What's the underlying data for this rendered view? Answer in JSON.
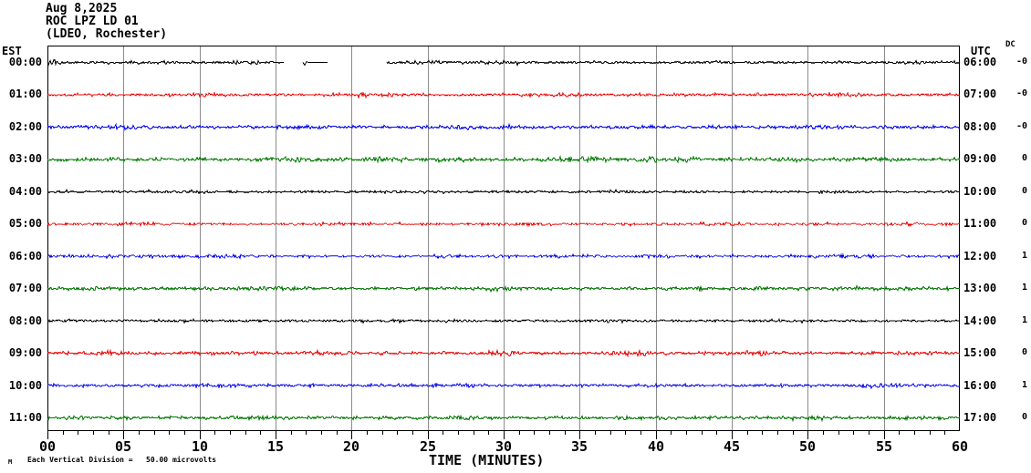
{
  "header": {
    "date": "Aug 8,2025",
    "station": "ROC LPZ LD 01",
    "network": "(LDEO, Rochester)"
  },
  "axes": {
    "left_label": "EST",
    "right_label": "UTC",
    "dc_label": "DC",
    "x_label": "TIME (MINUTES)",
    "x_ticks": [
      "00",
      "05",
      "10",
      "15",
      "20",
      "25",
      "30",
      "35",
      "40",
      "45",
      "50",
      "55",
      "60"
    ],
    "x_min": 0,
    "x_max": 60,
    "minor_tick_min": 1,
    "major_tick_min": 5
  },
  "footer": {
    "scale_note": "Each Vertical Division =   50.00 microvolts",
    "corner_glyph": "M"
  },
  "colors": {
    "black": "#000000",
    "red": "#e80000",
    "blue": "#0000e8",
    "green": "#007700",
    "grid": "#8c8c8c",
    "frame": "#000000",
    "background": "#ffffff"
  },
  "chart_data": {
    "type": "line",
    "title": "Helicorder record ROC LPZ LD 01 (LDEO, Rochester), Aug 8,2025",
    "x_axis": {
      "label": "TIME (MINUTES)",
      "min": 0,
      "max": 60,
      "gridline_every_min": 5,
      "minor_tick_min": 1
    },
    "y_layout": {
      "rows": 12,
      "minutes_per_row": 60,
      "scale_note": "Each Vertical Division = 50.00 microvolts"
    },
    "rows": [
      {
        "est": "00:00",
        "utc": "06:00",
        "dc": "-0",
        "color": "black",
        "amp": 1.3,
        "seed": 101,
        "segments": [
          {
            "from": 0,
            "to": 15.55,
            "type": "noise"
          },
          {
            "from": 16.8,
            "to": 18.4,
            "type": "blipflat"
          },
          {
            "from": 22.3,
            "to": 60,
            "type": "noise"
          }
        ],
        "bursts": [
          [
            0.4,
            0.8,
            1.8
          ],
          [
            7,
            1.2,
            0.6
          ],
          [
            13,
            1.0,
            0.7
          ],
          [
            25,
            1.5,
            0.5
          ],
          [
            30,
            2.0,
            0.5
          ],
          [
            44,
            1.5,
            0.6
          ],
          [
            57,
            1.0,
            0.5
          ]
        ]
      },
      {
        "est": "01:00",
        "utc": "07:00",
        "dc": "-0",
        "color": "red",
        "amp": 1.35,
        "seed": 102,
        "segments": [
          {
            "from": 0,
            "to": 60,
            "type": "noise"
          }
        ],
        "bursts": [
          [
            10,
            2.0,
            0.5
          ],
          [
            21,
            1.5,
            0.7
          ],
          [
            33,
            2.0,
            0.5
          ],
          [
            42,
            1.0,
            0.6
          ],
          [
            52,
            1.5,
            0.6
          ]
        ]
      },
      {
        "est": "02:00",
        "utc": "08:00",
        "dc": "-0",
        "color": "blue",
        "amp": 1.6,
        "seed": 103,
        "segments": [
          {
            "from": 0,
            "to": 60,
            "type": "noise"
          }
        ],
        "bursts": [
          [
            5,
            1.5,
            0.5
          ],
          [
            17,
            1.5,
            0.6
          ],
          [
            28,
            2.0,
            0.6
          ],
          [
            38,
            1.0,
            0.5
          ],
          [
            50,
            1.5,
            0.5
          ]
        ]
      },
      {
        "est": "03:00",
        "utc": "09:00",
        "dc": "0",
        "color": "green",
        "amp": 1.7,
        "seed": 104,
        "segments": [
          {
            "from": 0,
            "to": 60,
            "type": "noise"
          }
        ],
        "bursts": [
          [
            16,
            1.5,
            0.7
          ],
          [
            22,
            1.5,
            0.9
          ],
          [
            27,
            1.0,
            0.8
          ],
          [
            35,
            2.0,
            1.0
          ],
          [
            41,
            1.5,
            1.1
          ],
          [
            49,
            1.0,
            0.6
          ],
          [
            55,
            1.0,
            0.7
          ]
        ]
      },
      {
        "est": "04:00",
        "utc": "10:00",
        "dc": "0",
        "color": "black",
        "amp": 1.1,
        "seed": 105,
        "segments": [
          {
            "from": 0,
            "to": 60,
            "type": "noise"
          }
        ],
        "bursts": [
          [
            9,
            1.5,
            0.5
          ],
          [
            24,
            1.5,
            0.5
          ],
          [
            37,
            1.0,
            0.6
          ],
          [
            51,
            1.5,
            0.5
          ]
        ]
      },
      {
        "est": "05:00",
        "utc": "11:00",
        "dc": "0",
        "color": "red",
        "amp": 1.3,
        "seed": 106,
        "segments": [
          {
            "from": 0,
            "to": 60,
            "type": "noise"
          }
        ],
        "bursts": [
          [
            6,
            1.5,
            0.5
          ],
          [
            19,
            1.5,
            0.6
          ],
          [
            31,
            1.0,
            0.5
          ],
          [
            45,
            2.0,
            0.5
          ],
          [
            56,
            1.0,
            0.5
          ]
        ]
      },
      {
        "est": "06:00",
        "utc": "12:00",
        "dc": "1",
        "color": "blue",
        "amp": 1.45,
        "seed": 107,
        "segments": [
          {
            "from": 0,
            "to": 60,
            "type": "noise"
          }
        ],
        "bursts": [
          [
            12,
            1.5,
            0.5
          ],
          [
            26,
            1.5,
            0.6
          ],
          [
            40,
            1.0,
            0.5
          ],
          [
            53,
            1.5,
            0.5
          ]
        ]
      },
      {
        "est": "07:00",
        "utc": "13:00",
        "dc": "1",
        "color": "green",
        "amp": 1.6,
        "seed": 108,
        "segments": [
          {
            "from": 0,
            "to": 60,
            "type": "noise"
          }
        ],
        "bursts": [
          [
            3,
            1.0,
            0.6
          ],
          [
            15,
            1.5,
            0.6
          ],
          [
            29,
            1.5,
            0.5
          ],
          [
            43,
            1.0,
            0.6
          ],
          [
            54,
            1.5,
            0.5
          ]
        ]
      },
      {
        "est": "08:00",
        "utc": "14:00",
        "dc": "1",
        "color": "black",
        "amp": 1.2,
        "seed": 109,
        "segments": [
          {
            "from": 0,
            "to": 60,
            "type": "noise"
          }
        ],
        "bursts": [
          [
            8,
            1.5,
            0.5
          ],
          [
            23,
            1.0,
            0.5
          ],
          [
            36,
            1.5,
            0.5
          ],
          [
            48,
            1.0,
            0.5
          ]
        ]
      },
      {
        "est": "09:00",
        "utc": "15:00",
        "dc": "0",
        "color": "red",
        "amp": 1.6,
        "seed": 110,
        "segments": [
          {
            "from": 0,
            "to": 60,
            "type": "noise"
          }
        ],
        "bursts": [
          [
            4,
            1.0,
            0.8
          ],
          [
            18,
            1.5,
            0.7
          ],
          [
            30,
            1.0,
            0.9
          ],
          [
            39,
            1.5,
            0.6
          ],
          [
            47,
            1.0,
            0.7
          ],
          [
            58,
            1.0,
            0.6
          ]
        ]
      },
      {
        "est": "10:00",
        "utc": "16:00",
        "dc": "1",
        "color": "blue",
        "amp": 1.45,
        "seed": 111,
        "segments": [
          {
            "from": 0,
            "to": 60,
            "type": "noise"
          }
        ],
        "bursts": [
          [
            11,
            1.5,
            0.5
          ],
          [
            27,
            1.5,
            0.6
          ],
          [
            41,
            1.0,
            0.5
          ],
          [
            55,
            1.5,
            0.5
          ]
        ]
      },
      {
        "est": "11:00",
        "utc": "17:00",
        "dc": "0",
        "color": "green",
        "amp": 1.6,
        "seed": 112,
        "segments": [
          {
            "from": 0,
            "to": 60,
            "type": "noise"
          }
        ],
        "bursts": [
          [
            2,
            1.0,
            0.6
          ],
          [
            14,
            1.5,
            0.7
          ],
          [
            28,
            1.5,
            0.6
          ],
          [
            38,
            1.0,
            0.7
          ],
          [
            50,
            1.5,
            0.6
          ],
          [
            59,
            0.8,
            0.5
          ]
        ]
      }
    ]
  }
}
